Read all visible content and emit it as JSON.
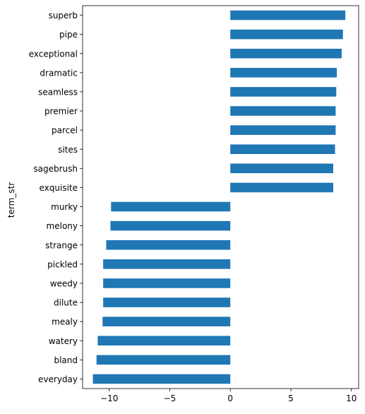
{
  "chart_data": {
    "type": "bar",
    "orientation": "horizontal",
    "ylabel": "term_str",
    "xlabel": "",
    "title": "",
    "xlim": [
      -12.2,
      10.6
    ],
    "x_ticks": [
      -10,
      -5,
      0,
      5,
      10
    ],
    "x_tick_labels": [
      "−10",
      "−5",
      "0",
      "5",
      "10"
    ],
    "grid": false,
    "legend": "none",
    "bar_color": "#1f77b4",
    "categories": [
      "superb",
      "pipe",
      "exceptional",
      "dramatic",
      "seamless",
      "premier",
      "parcel",
      "sites",
      "sagebrush",
      "exquisite",
      "murky",
      "melony",
      "strange",
      "pickled",
      "weedy",
      "dilute",
      "mealy",
      "watery",
      "bland",
      "everyday"
    ],
    "values": [
      9.5,
      9.3,
      9.2,
      8.8,
      8.75,
      8.7,
      8.7,
      8.65,
      8.5,
      8.5,
      -9.85,
      -9.9,
      -10.25,
      -10.5,
      -10.5,
      -10.5,
      -10.55,
      -10.95,
      -11.05,
      -11.35
    ]
  }
}
